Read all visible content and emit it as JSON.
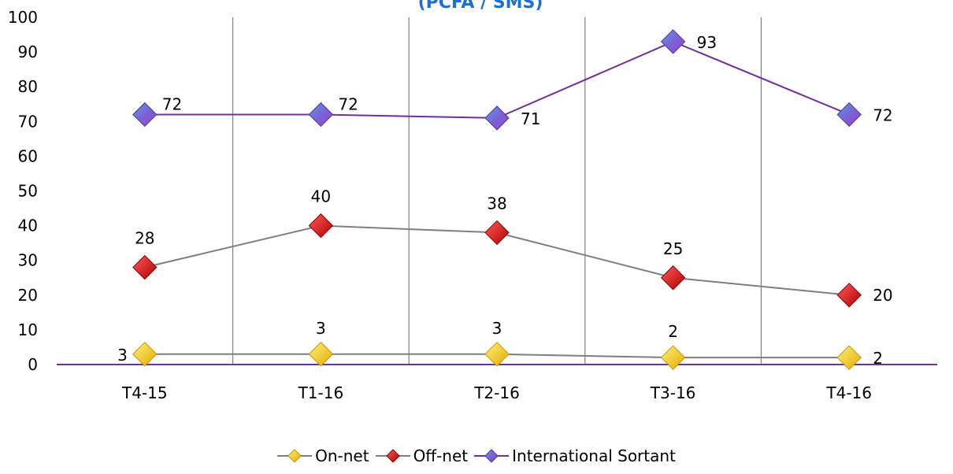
{
  "chart_data": {
    "type": "line",
    "title": "(PCFA / SMS)",
    "categories": [
      "T4-15",
      "T1-16",
      "T2-16",
      "T3-16",
      "T4-16"
    ],
    "ylim": [
      0,
      100
    ],
    "y_ticks": [
      "0",
      "10",
      "20",
      "30",
      "40",
      "50",
      "60",
      "70",
      "80",
      "90",
      "100"
    ],
    "grid": "vertical",
    "legend_position": "bottom",
    "series": [
      {
        "name": "On-net",
        "values": [
          3,
          3,
          3,
          2,
          2
        ],
        "labels": [
          "3",
          "3",
          "3",
          "2",
          "2"
        ],
        "line_color": "#7f7f7f",
        "marker_color": "#ffd700"
      },
      {
        "name": "Off-net",
        "values": [
          28,
          40,
          38,
          25,
          20
        ],
        "labels": [
          "28",
          "40",
          "38",
          "25",
          "20"
        ],
        "line_color": "#7f7f7f",
        "marker_color": "#e00000"
      },
      {
        "name": "International Sortant",
        "values": [
          72,
          72,
          71,
          93,
          72
        ],
        "labels": [
          "72",
          "72",
          "71",
          "93",
          "72"
        ],
        "line_color": "#7030a0",
        "marker_color": "#7a5fd0"
      }
    ],
    "colors": {
      "title": "#1f6fd0",
      "axis": "#7030a0",
      "grid": "#808080"
    }
  }
}
